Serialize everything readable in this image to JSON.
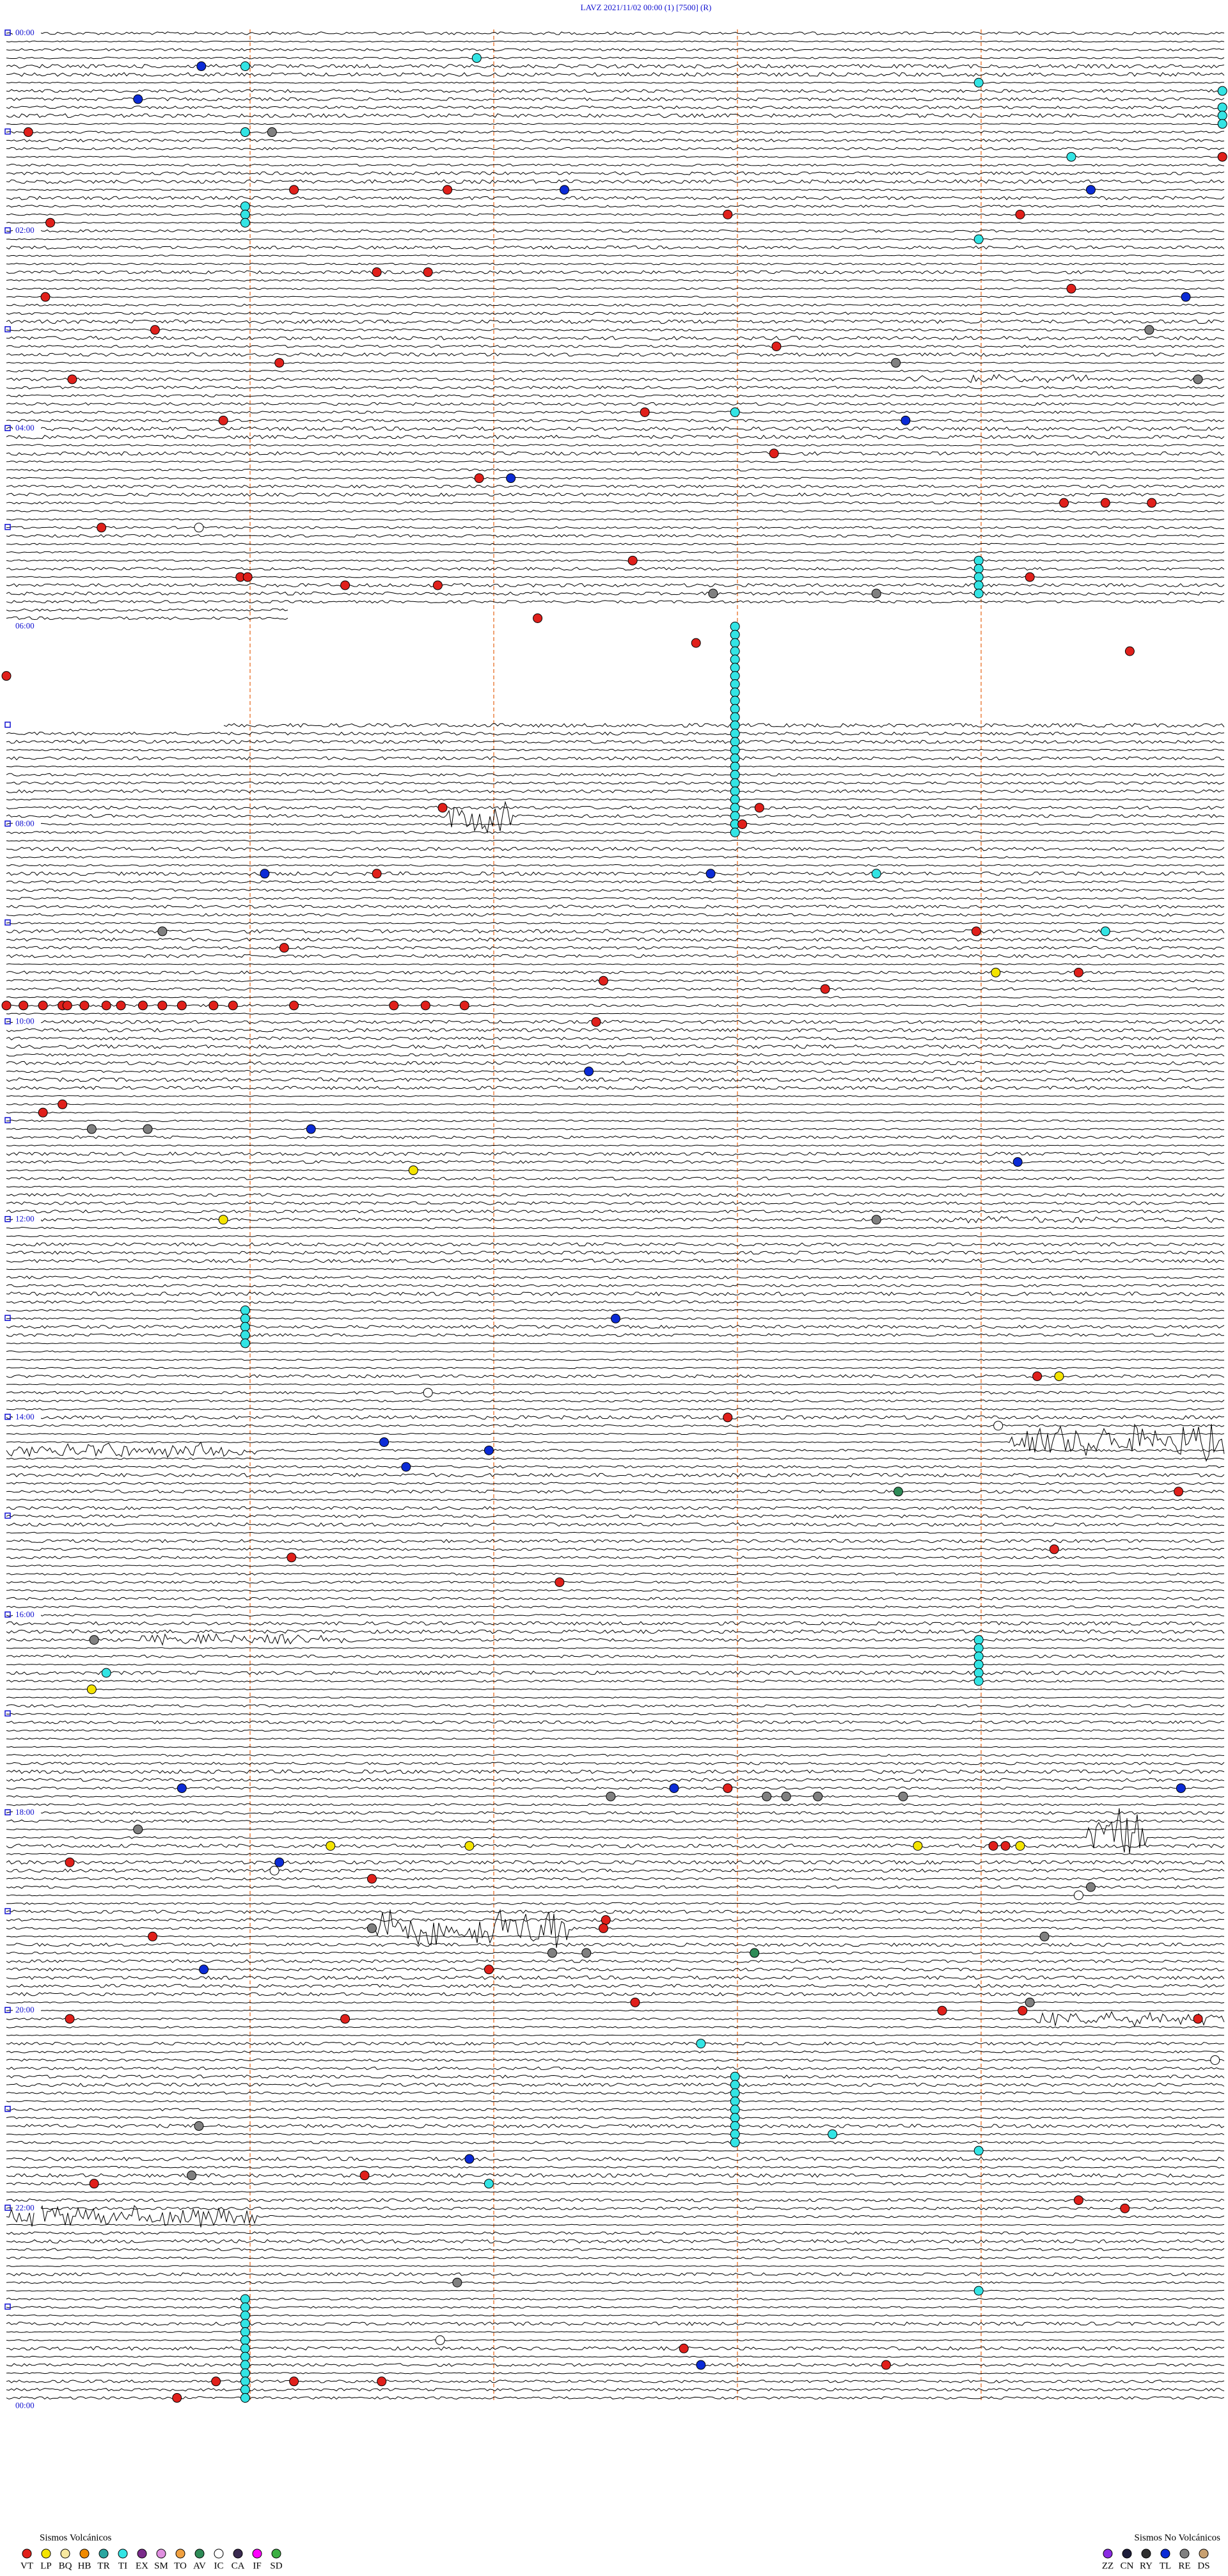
{
  "header": {
    "title": "LAVZ     2021/11/02 00:00     (1)     [7500]     (R)"
  },
  "time_labels": [
    "00:00",
    "02:00",
    "04:00",
    "06:00",
    "08:00",
    "10:00",
    "12:00",
    "14:00",
    "16:00",
    "18:00",
    "20:00",
    "22:00",
    "00:00"
  ],
  "legend": {
    "volcanic": {
      "title": "Sismos Volcánicos",
      "items": [
        {
          "code": "VT",
          "color": "#e0201b"
        },
        {
          "code": "LP",
          "color": "#f4e400"
        },
        {
          "code": "BQ",
          "color": "#f7e8a0"
        },
        {
          "code": "HB",
          "color": "#f08a00"
        },
        {
          "code": "TR",
          "color": "#2aa6a0"
        },
        {
          "code": "TI",
          "color": "#33e4e4"
        },
        {
          "code": "EX",
          "color": "#7a2a8a"
        },
        {
          "code": "SM",
          "color": "#e090e0"
        },
        {
          "code": "TO",
          "color": "#f0a040"
        },
        {
          "code": "AV",
          "color": "#2e8b57"
        },
        {
          "code": "IC",
          "color": "#ffffff"
        },
        {
          "code": "CA",
          "color": "#3a2a50"
        },
        {
          "code": "IF",
          "color": "#ff00ff"
        },
        {
          "code": "SD",
          "color": "#3cb043"
        }
      ]
    },
    "non_volcanic": {
      "title": "Sismos No Volcánicos",
      "items": [
        {
          "code": "ZZ",
          "color": "#8a2be2"
        },
        {
          "code": "CN",
          "color": "#1e1e3c"
        },
        {
          "code": "RY",
          "color": "#303030"
        },
        {
          "code": "TL",
          "color": "#0b2bd6"
        },
        {
          "code": "RE",
          "color": "#808080"
        },
        {
          "code": "DS",
          "color": "#c8a070"
        }
      ]
    }
  },
  "events": [
    {
      "type": "TI",
      "minute": 16.93
    },
    {
      "type": "TL",
      "minute": 20.8
    },
    {
      "type": "TI",
      "minute": 20.98
    },
    {
      "type": "TI",
      "minute": 33.99
    },
    {
      "type": "TI",
      "minute": 39.99
    },
    {
      "type": "TL",
      "minute": 40.54
    },
    {
      "type": "TI",
      "minute": 49.99
    },
    {
      "type": "TI",
      "minute": 54.99
    },
    {
      "type": "TI",
      "minute": 59.99
    },
    {
      "type": "VT",
      "minute": 60.09
    },
    {
      "type": "TI",
      "minute": 60.98
    },
    {
      "type": "RE",
      "minute": 61.09
    },
    {
      "type": "TI",
      "minute": 79.37
    },
    {
      "type": "VT",
      "minute": 79.99
    },
    {
      "type": "VT",
      "minute": 96.18
    },
    {
      "type": "VT",
      "minute": 96.81
    },
    {
      "type": "TL",
      "minute": 97.29
    },
    {
      "type": "TL",
      "minute": 99.45
    },
    {
      "type": "TI",
      "minute": 105.98
    },
    {
      "type": "TI",
      "minute": 110.98
    },
    {
      "type": "VT",
      "minute": 112.96
    },
    {
      "type": "VT",
      "minute": 114.16
    },
    {
      "type": "VT",
      "minute": 115.18
    },
    {
      "type": "TI",
      "minute": 115.98
    },
    {
      "type": "TI",
      "minute": 128.99
    },
    {
      "type": "VT",
      "minute": 146.52
    },
    {
      "type": "VT",
      "minute": 146.73
    },
    {
      "type": "VT",
      "minute": 159.37
    },
    {
      "type": "VT",
      "minute": 160.16
    },
    {
      "type": "TL",
      "minute": 164.84
    },
    {
      "type": "VT",
      "minute": 180.61
    },
    {
      "type": "RE",
      "minute": 184.69
    },
    {
      "type": "VT",
      "minute": 193.16
    },
    {
      "type": "VT",
      "minute": 201.12
    },
    {
      "type": "RE",
      "minute": 203.65
    },
    {
      "type": "VT",
      "minute": 210.27
    },
    {
      "type": "RE",
      "minute": 214.89
    },
    {
      "type": "VT",
      "minute": 232.62
    },
    {
      "type": "TI",
      "minute": 232.99
    },
    {
      "type": "VT",
      "minute": 235.89
    },
    {
      "type": "TL",
      "minute": 238.69
    },
    {
      "type": "VT",
      "minute": 258.15
    },
    {
      "type": "VT",
      "minute": 271.94
    },
    {
      "type": "TL",
      "minute": 272.07
    },
    {
      "type": "VT",
      "minute": 289.34
    },
    {
      "type": "VT",
      "minute": 289.51
    },
    {
      "type": "VT",
      "minute": 289.7
    },
    {
      "type": "VT",
      "minute": 300.39
    },
    {
      "type": "IC",
      "minute": 300.79
    },
    {
      "type": "VT",
      "minute": 322.57
    },
    {
      "type": "TI",
      "minute": 323.99
    },
    {
      "type": "TI",
      "minute": 328.99
    },
    {
      "type": "VT",
      "minute": 330.96
    },
    {
      "type": "VT",
      "minute": 330.99
    },
    {
      "type": "TI",
      "minute": 333.99
    },
    {
      "type": "VT",
      "minute": 334.2
    },
    {
      "type": "VT",
      "minute": 336.39
    },
    {
      "type": "VT",
      "minute": 336.77
    },
    {
      "type": "TI",
      "minute": 338.99
    },
    {
      "type": "RE",
      "minute": 342.9
    },
    {
      "type": "RE",
      "minute": 343.57
    },
    {
      "type": "TI",
      "minute": 343.99
    },
    {
      "type": "VT",
      "minute": 357.18
    },
    {
      "type": "TI",
      "minute": 362.99
    },
    {
      "type": "TI",
      "minute": 367.99
    },
    {
      "type": "VT",
      "minute": 372.83
    },
    {
      "type": "TI",
      "minute": 372.99
    },
    {
      "type": "TI",
      "minute": 377.99
    },
    {
      "type": "VT",
      "minute": 379.61
    },
    {
      "type": "TI",
      "minute": 382.99
    },
    {
      "type": "TI",
      "minute": 387.99
    },
    {
      "type": "VT",
      "minute": 390.0
    },
    {
      "type": "TI",
      "minute": 392.99
    },
    {
      "type": "TI",
      "minute": 397.99
    },
    {
      "type": "TI",
      "minute": 402.99
    },
    {
      "type": "TI",
      "minute": 407.99
    },
    {
      "type": "TI",
      "minute": 412.99
    },
    {
      "type": "TI",
      "minute": 417.99
    },
    {
      "type": "TI",
      "minute": 422.99
    },
    {
      "type": "TI",
      "minute": 427.99
    },
    {
      "type": "TI",
      "minute": 432.99
    },
    {
      "type": "TI",
      "minute": 437.99
    },
    {
      "type": "TI",
      "minute": 442.99
    },
    {
      "type": "TI",
      "minute": 447.99
    },
    {
      "type": "TI",
      "minute": 452.99
    },
    {
      "type": "TI",
      "minute": 457.99
    },
    {
      "type": "TI",
      "minute": 462.99
    },
    {
      "type": "TI",
      "minute": 467.99
    },
    {
      "type": "VT",
      "minute": 471.79
    },
    {
      "type": "TI",
      "minute": 472.99
    },
    {
      "type": "VT",
      "minute": 473.09
    },
    {
      "type": "TI",
      "minute": 477.99
    },
    {
      "type": "TI",
      "minute": 482.99
    },
    {
      "type": "VT",
      "minute": 483.02
    },
    {
      "type": "TI",
      "minute": 487.99
    },
    {
      "type": "TL",
      "minute": 511.06
    },
    {
      "type": "VT",
      "minute": 511.52
    },
    {
      "type": "TL",
      "minute": 512.89
    },
    {
      "type": "TI",
      "minute": 513.57
    },
    {
      "type": "RE",
      "minute": 545.64
    },
    {
      "type": "VT",
      "minute": 548.98
    },
    {
      "type": "TI",
      "minute": 549.51
    },
    {
      "type": "VT",
      "minute": 556.14
    },
    {
      "type": "LP",
      "minute": 574.06
    },
    {
      "type": "VT",
      "minute": 574.4
    },
    {
      "type": "VT",
      "minute": 577.45
    },
    {
      "type": "VT",
      "minute": 583.36
    },
    {
      "type": "VT",
      "minute": 590.0
    },
    {
      "type": "VT",
      "minute": 590.07
    },
    {
      "type": "VT",
      "minute": 590.15
    },
    {
      "type": "VT",
      "minute": 590.23
    },
    {
      "type": "VT",
      "minute": 590.25
    },
    {
      "type": "VT",
      "minute": 590.32
    },
    {
      "type": "VT",
      "minute": 590.41
    },
    {
      "type": "VT",
      "minute": 590.47
    },
    {
      "type": "VT",
      "minute": 590.56
    },
    {
      "type": "VT",
      "minute": 590.64
    },
    {
      "type": "VT",
      "minute": 590.72
    },
    {
      "type": "VT",
      "minute": 590.85
    },
    {
      "type": "VT",
      "minute": 590.93
    },
    {
      "type": "VT",
      "minute": 591.18
    },
    {
      "type": "VT",
      "minute": 591.59
    },
    {
      "type": "VT",
      "minute": 591.72
    },
    {
      "type": "VT",
      "minute": 591.88
    },
    {
      "type": "VT",
      "minute": 602.42
    },
    {
      "type": "TL",
      "minute": 632.39
    },
    {
      "type": "VT",
      "minute": 650.23
    },
    {
      "type": "VT",
      "minute": 655.15
    },
    {
      "type": "RE",
      "minute": 665.35
    },
    {
      "type": "RE",
      "minute": 665.58
    },
    {
      "type": "TL",
      "minute": 666.25
    },
    {
      "type": "TL",
      "minute": 689.15
    },
    {
      "type": "LP",
      "minute": 691.67
    },
    {
      "type": "LP",
      "minute": 720.89
    },
    {
      "type": "RE",
      "minute": 723.57
    },
    {
      "type": "TI",
      "minute": 775.98
    },
    {
      "type": "TI",
      "minute": 780.98
    },
    {
      "type": "TL",
      "minute": 782.5
    },
    {
      "type": "TI",
      "minute": 785.98
    },
    {
      "type": "TI",
      "minute": 790.98
    },
    {
      "type": "TI",
      "minute": 795.98
    },
    {
      "type": "VT",
      "minute": 819.23
    },
    {
      "type": "LP",
      "minute": 819.32
    },
    {
      "type": "IC",
      "minute": 826.73
    },
    {
      "type": "VT",
      "minute": 842.96
    },
    {
      "type": "IC",
      "minute": 849.07
    },
    {
      "type": "TL",
      "minute": 856.55
    },
    {
      "type": "TL",
      "minute": 861.98
    },
    {
      "type": "TL",
      "minute": 871.64
    },
    {
      "type": "AV",
      "minute": 888.66
    },
    {
      "type": "VT",
      "minute": 889.81
    },
    {
      "type": "VT",
      "minute": 924.3
    },
    {
      "type": "VT",
      "minute": 926.17
    },
    {
      "type": "VT",
      "minute": 942.27
    },
    {
      "type": "RE",
      "minute": 975.36
    },
    {
      "type": "TI",
      "minute": 978.99
    },
    {
      "type": "TI",
      "minute": 983.99
    },
    {
      "type": "TI",
      "minute": 988.99
    },
    {
      "type": "TI",
      "minute": 993.99
    },
    {
      "type": "TI",
      "minute": 995.41
    },
    {
      "type": "TI",
      "minute": 998.99
    },
    {
      "type": "TI",
      "minute": 1003.99
    },
    {
      "type": "LP",
      "minute": 1005.35
    },
    {
      "type": "TL",
      "minute": 1065.72
    },
    {
      "type": "TL",
      "minute": 1067.74
    },
    {
      "type": "VT",
      "minute": 1067.96
    },
    {
      "type": "TL",
      "minute": 1069.82
    },
    {
      "type": "RE",
      "minute": 1072.48
    },
    {
      "type": "RE",
      "minute": 1073.12
    },
    {
      "type": "RE",
      "minute": 1073.2
    },
    {
      "type": "RE",
      "minute": 1073.33
    },
    {
      "type": "RE",
      "minute": 1073.68
    },
    {
      "type": "RE",
      "minute": 1090.54
    },
    {
      "type": "LP",
      "minute": 1101.33
    },
    {
      "type": "LP",
      "minute": 1101.9
    },
    {
      "type": "LP",
      "minute": 1103.74
    },
    {
      "type": "VT",
      "minute": 1104.05
    },
    {
      "type": "VT",
      "minute": 1104.1
    },
    {
      "type": "LP",
      "minute": 1104.16
    },
    {
      "type": "VT",
      "minute": 1110.26
    },
    {
      "type": "TL",
      "minute": 1111.12
    },
    {
      "type": "IC",
      "minute": 1116.1
    },
    {
      "type": "VT",
      "minute": 1121.5
    },
    {
      "type": "RE",
      "minute": 1129.45
    },
    {
      "type": "IC",
      "minute": 1134.4
    },
    {
      "type": "VT",
      "minute": 1147.46
    },
    {
      "type": "RE",
      "minute": 1151.5
    },
    {
      "type": "VT",
      "minute": 1152.45
    },
    {
      "type": "VT",
      "minute": 1155.6
    },
    {
      "type": "RE",
      "minute": 1159.26
    },
    {
      "type": "RE",
      "minute": 1167.24
    },
    {
      "type": "RE",
      "minute": 1167.38
    },
    {
      "type": "AV",
      "minute": 1168.07
    },
    {
      "type": "TL",
      "minute": 1175.81
    },
    {
      "type": "VT",
      "minute": 1176.98
    },
    {
      "type": "VT",
      "minute": 1197.58
    },
    {
      "type": "RE",
      "minute": 1199.2
    },
    {
      "type": "VT",
      "minute": 1203.84
    },
    {
      "type": "VT",
      "minute": 1204.17
    },
    {
      "type": "VT",
      "minute": 1205.26
    },
    {
      "type": "VT",
      "minute": 1206.39
    },
    {
      "type": "VT",
      "minute": 1209.89
    },
    {
      "type": "TI",
      "minute": 1222.85
    },
    {
      "type": "IC",
      "minute": 1234.96
    },
    {
      "type": "TI",
      "minute": 1242.99
    },
    {
      "type": "TI",
      "minute": 1247.99
    },
    {
      "type": "TI",
      "minute": 1252.99
    },
    {
      "type": "TI",
      "minute": 1257.99
    },
    {
      "type": "TI",
      "minute": 1262.99
    },
    {
      "type": "TI",
      "minute": 1267.99
    },
    {
      "type": "RE",
      "minute": 1270.79
    },
    {
      "type": "TI",
      "minute": 1272.99
    },
    {
      "type": "TI",
      "minute": 1277.99
    },
    {
      "type": "TI",
      "minute": 1278.39
    },
    {
      "type": "TI",
      "minute": 1282.99
    },
    {
      "type": "TI",
      "minute": 1288.99
    },
    {
      "type": "TL",
      "minute": 1291.9
    },
    {
      "type": "RE",
      "minute": 1300.76
    },
    {
      "type": "VT",
      "minute": 1301.47
    },
    {
      "type": "VT",
      "minute": 1305.36
    },
    {
      "type": "TI",
      "minute": 1306.98
    },
    {
      "type": "VT",
      "minute": 1319.4
    },
    {
      "type": "VT",
      "minute": 1324.59
    },
    {
      "type": "RE",
      "minute": 1366.85
    },
    {
      "type": "TI",
      "minute": 1373.99
    },
    {
      "type": "TI",
      "minute": 1375.98
    },
    {
      "type": "TI",
      "minute": 1380.98
    },
    {
      "type": "TI",
      "minute": 1385.98
    },
    {
      "type": "TI",
      "minute": 1390.98
    },
    {
      "type": "TI",
      "minute": 1395.98
    },
    {
      "type": "IC",
      "minute": 1401.78
    },
    {
      "type": "TI",
      "minute": 1400.98
    },
    {
      "type": "TI",
      "minute": 1405.98
    },
    {
      "type": "VT",
      "minute": 1407.78
    },
    {
      "type": "TI",
      "minute": 1410.98
    },
    {
      "type": "TI",
      "minute": 1415.98
    },
    {
      "type": "TL",
      "minute": 1417.85
    },
    {
      "type": "VT",
      "minute": 1418.61
    },
    {
      "type": "TI",
      "minute": 1420.98
    },
    {
      "type": "VT",
      "minute": 1425.86
    },
    {
      "type": "TI",
      "minute": 1425.98
    },
    {
      "type": "VT",
      "minute": 1426.18
    },
    {
      "type": "VT",
      "minute": 1426.54
    },
    {
      "type": "TI",
      "minute": 1430.98
    },
    {
      "type": "VT",
      "minute": 1435.7
    },
    {
      "type": "TI",
      "minute": 1435.98
    }
  ]
}
